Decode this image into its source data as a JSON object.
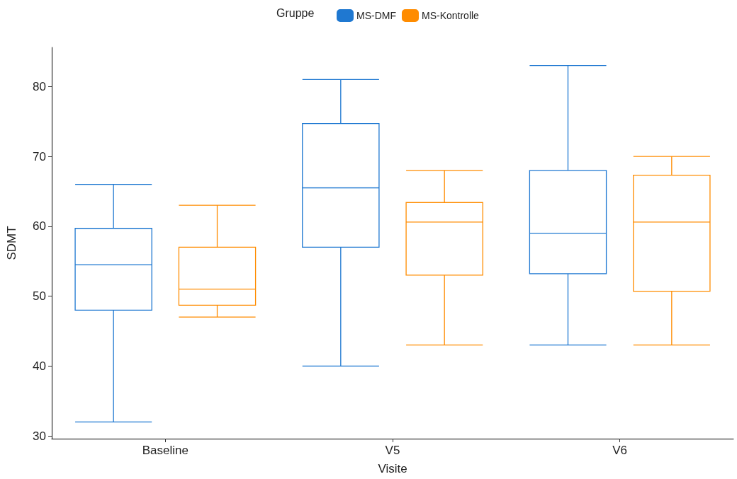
{
  "chart_data": {
    "type": "box",
    "xlabel": "Visite",
    "ylabel": "SDMT",
    "legend_title": "Gruppe",
    "legend": "top",
    "grid": false,
    "categories": [
      "Baseline",
      "V5",
      "V6"
    ],
    "ylim": [
      29.6,
      85.6
    ],
    "yticks": [
      30,
      40,
      50,
      60,
      70,
      80
    ],
    "series": [
      {
        "name": "MS-DMF",
        "color": "#1f78d1",
        "boxes": [
          {
            "low": 32,
            "q1": 48,
            "median": 54.5,
            "q3": 59.7,
            "high": 66
          },
          {
            "low": 40,
            "q1": 57,
            "median": 65.5,
            "q3": 74.7,
            "high": 81
          },
          {
            "low": 43,
            "q1": 53.2,
            "median": 59,
            "q3": 68,
            "high": 83
          }
        ]
      },
      {
        "name": "MS-Kontrolle",
        "color": "#ff8c00",
        "boxes": [
          {
            "low": 47,
            "q1": 48.7,
            "median": 51,
            "q3": 57,
            "high": 63
          },
          {
            "low": 43,
            "q1": 53,
            "median": 60.6,
            "q3": 63.4,
            "high": 68
          },
          {
            "low": 43,
            "q1": 50.7,
            "median": 60.6,
            "q3": 67.3,
            "high": 70
          }
        ]
      }
    ]
  }
}
